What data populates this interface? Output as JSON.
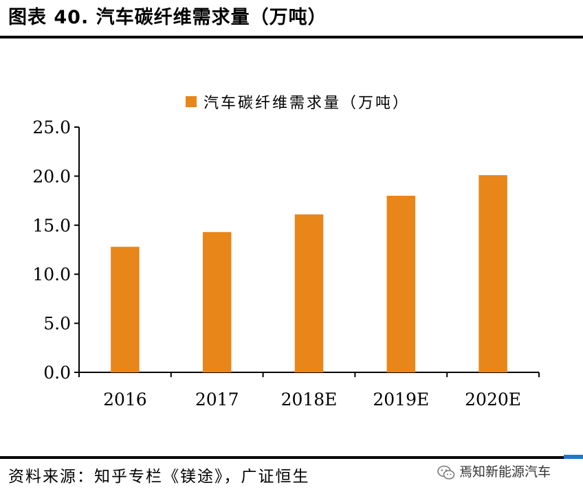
{
  "figure": {
    "title": "图表 40. 汽车碳纤维需求量（万吨）",
    "source": "资料来源：知乎专栏《镁途》，广证恒生",
    "watermark": "焉知新能源汽车",
    "watermark_icon": "wechat-icon"
  },
  "colors": {
    "bar": "#E8861A",
    "axis": "#000000",
    "accent": "#1F78C8"
  },
  "chart_data": {
    "type": "bar",
    "legend": "汽车碳纤维需求量（万吨）",
    "legend_position": "top",
    "categories": [
      "2016",
      "2017",
      "2018E",
      "2019E",
      "2020E"
    ],
    "series": [
      {
        "name": "汽车碳纤维需求量（万吨）",
        "values": [
          12.8,
          14.3,
          16.1,
          18.0,
          20.1
        ]
      }
    ],
    "ylim": [
      0,
      25
    ],
    "yticks": [
      "0.0",
      "5.0",
      "10.0",
      "15.0",
      "20.0",
      "25.0"
    ],
    "grid": false
  }
}
